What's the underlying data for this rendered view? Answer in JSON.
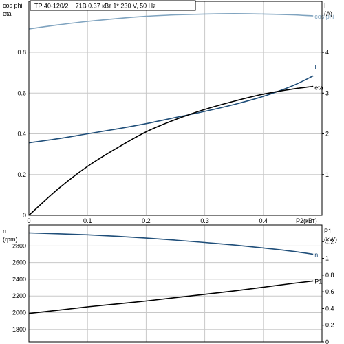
{
  "header": {
    "title": "TP 40-120/2 + 71B    0.37 кВт    1* 230 V, 50 Hz"
  },
  "colors": {
    "cos_phi": "#7fa3bf",
    "current": "#1f4e79",
    "eta": "#000000",
    "speed": "#1f4e79",
    "power": "#000000"
  },
  "chart_data": [
    {
      "type": "line",
      "x": [
        0,
        0.05,
        0.1,
        0.15,
        0.2,
        0.25,
        0.3,
        0.35,
        0.4,
        0.45,
        0.485
      ],
      "xlabel": "P2(кВт)",
      "xlim": [
        0,
        0.5
      ],
      "x_ticks": [
        "0",
        "0.1",
        "0.2",
        "0.3",
        "0.4"
      ],
      "left_axis": {
        "label_line1": "cos phi",
        "label_line2": "eta",
        "ylim": [
          0,
          1.05
        ],
        "ticks": [
          "0",
          "0.2",
          "0.4",
          "0.6",
          "0.8"
        ]
      },
      "right_axis": {
        "label_line1": "I",
        "label_line2": "(A)",
        "ylim": [
          0,
          5.25
        ],
        "ticks": [
          "1",
          "2",
          "3",
          "4"
        ]
      },
      "grid": true,
      "series": [
        {
          "name": "cos phi",
          "axis": "left",
          "color": "#7fa3bf",
          "values": [
            0.915,
            0.935,
            0.952,
            0.966,
            0.977,
            0.984,
            0.988,
            0.99,
            0.988,
            0.984,
            0.979
          ]
        },
        {
          "name": "I",
          "axis": "right",
          "color": "#1f4e79",
          "values": [
            1.78,
            1.88,
            2.0,
            2.12,
            2.25,
            2.4,
            2.55,
            2.72,
            2.92,
            3.18,
            3.42
          ]
        },
        {
          "name": "eta",
          "axis": "left",
          "color": "#000000",
          "values": [
            0.0,
            0.13,
            0.24,
            0.33,
            0.41,
            0.47,
            0.52,
            0.56,
            0.595,
            0.62,
            0.633
          ]
        }
      ]
    },
    {
      "type": "line",
      "x": [
        0,
        0.05,
        0.1,
        0.15,
        0.2,
        0.25,
        0.3,
        0.35,
        0.4,
        0.45,
        0.485
      ],
      "xlim": [
        0,
        0.5
      ],
      "left_axis": {
        "label_line1": "n",
        "label_line2": "(rpm)",
        "ylim": [
          1650,
          3050
        ],
        "ticks": [
          "1800",
          "2000",
          "2200",
          "2400",
          "2600",
          "2800"
        ]
      },
      "right_axis": {
        "label_line1": "P1",
        "label_line2": "(kW)",
        "ylim": [
          0,
          1.4
        ],
        "ticks": [
          "0",
          "0.2",
          "0.4",
          "0.6",
          "0.8",
          "1",
          "1.2"
        ]
      },
      "grid": true,
      "series": [
        {
          "name": "n",
          "axis": "left",
          "color": "#1f4e79",
          "values": [
            2955,
            2945,
            2932,
            2915,
            2893,
            2868,
            2840,
            2810,
            2775,
            2735,
            2700
          ]
        },
        {
          "name": "P1",
          "axis": "right",
          "color": "#000000",
          "values": [
            0.34,
            0.38,
            0.42,
            0.455,
            0.49,
            0.53,
            0.57,
            0.61,
            0.655,
            0.7,
            0.73
          ]
        }
      ]
    }
  ]
}
